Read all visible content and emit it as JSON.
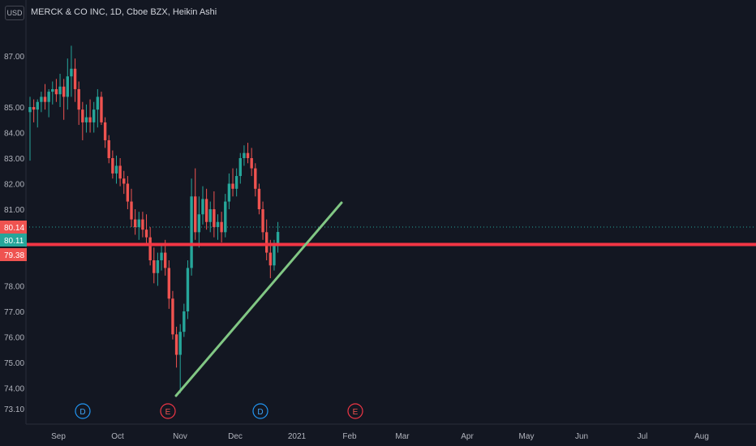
{
  "currency_label": "USD",
  "chart_title": "MERCK & CO INC, 1D, Cboe BZX, Heikin Ashi",
  "colors": {
    "background": "#131722",
    "up": "#26a69a",
    "down": "#ef5350",
    "trendline": "#81c784",
    "support_line": "#f23645",
    "text": "#b2b5be",
    "last_price_line": "#26a69a"
  },
  "chart_data": {
    "type": "candlestick",
    "y_ticks": [
      "87.00",
      "85.00",
      "84.00",
      "83.00",
      "82.00",
      "81.00",
      "78.00",
      "77.00",
      "76.00",
      "75.00",
      "74.00",
      "73.10"
    ],
    "x_ticks": [
      "Sep",
      "Oct",
      "Nov",
      "Dec",
      "2021",
      "Feb",
      "Mar",
      "Apr",
      "May",
      "Jun",
      "Jul",
      "Aug"
    ],
    "price_labels": [
      {
        "value": "80.14",
        "color": "#ef5350"
      },
      {
        "value": "80.11",
        "color": "#26a69a"
      },
      {
        "value": "79.38",
        "color": "#ef5350"
      }
    ],
    "horizontal_line": 79.38,
    "trendline": {
      "from": {
        "date": "Nov",
        "price": 73.6
      },
      "to": {
        "date": "Jan-late",
        "price": 81.1
      }
    },
    "event_markers": [
      {
        "label": "D",
        "type": "dividend",
        "month": "Sep"
      },
      {
        "label": "E",
        "type": "earnings",
        "month": "Nov"
      },
      {
        "label": "D",
        "type": "dividend",
        "month": "Dec"
      },
      {
        "label": "E",
        "type": "earnings",
        "month": "Feb"
      }
    ],
    "candles": [
      [
        84.8,
        85.4,
        82.9,
        85.0
      ],
      [
        85.0,
        85.3,
        84.4,
        84.9
      ],
      [
        84.9,
        85.3,
        84.2,
        85.2
      ],
      [
        85.2,
        85.6,
        84.8,
        85.4
      ],
      [
        85.4,
        85.9,
        84.9,
        85.2
      ],
      [
        85.2,
        85.7,
        84.6,
        85.6
      ],
      [
        85.6,
        86.0,
        85.1,
        85.7
      ],
      [
        85.7,
        86.1,
        85.2,
        85.5
      ],
      [
        85.5,
        86.3,
        85.0,
        85.8
      ],
      [
        85.8,
        86.1,
        84.5,
        85.4
      ],
      [
        85.4,
        86.9,
        84.9,
        86.2
      ],
      [
        86.2,
        87.4,
        85.4,
        86.5
      ],
      [
        86.5,
        86.9,
        85.2,
        85.7
      ],
      [
        85.7,
        86.0,
        84.3,
        84.9
      ],
      [
        84.9,
        85.2,
        83.7,
        84.4
      ],
      [
        84.4,
        85.1,
        84.0,
        84.6
      ],
      [
        84.6,
        85.3,
        84.0,
        84.4
      ],
      [
        84.4,
        85.2,
        84.0,
        84.9
      ],
      [
        84.9,
        85.7,
        84.2,
        85.4
      ],
      [
        85.4,
        85.6,
        84.3,
        84.4
      ],
      [
        84.4,
        84.6,
        83.4,
        83.7
      ],
      [
        83.7,
        83.9,
        82.8,
        83.0
      ],
      [
        83.0,
        83.3,
        82.2,
        82.4
      ],
      [
        82.4,
        83.1,
        82.0,
        82.7
      ],
      [
        82.7,
        83.0,
        81.9,
        82.2
      ],
      [
        82.2,
        82.5,
        81.6,
        82.0
      ],
      [
        82.0,
        82.3,
        81.0,
        81.3
      ],
      [
        81.3,
        81.8,
        80.3,
        80.6
      ],
      [
        80.6,
        81.0,
        80.0,
        80.3
      ],
      [
        80.3,
        80.9,
        79.8,
        80.6
      ],
      [
        80.6,
        80.9,
        79.9,
        80.2
      ],
      [
        80.2,
        80.8,
        79.6,
        79.9
      ],
      [
        79.9,
        80.3,
        78.8,
        79.0
      ],
      [
        79.0,
        79.5,
        78.1,
        78.5
      ],
      [
        78.5,
        79.3,
        78.0,
        79.0
      ],
      [
        79.0,
        79.6,
        78.6,
        79.3
      ],
      [
        79.3,
        79.8,
        78.4,
        78.7
      ],
      [
        78.7,
        79.0,
        77.1,
        77.5
      ],
      [
        77.5,
        77.8,
        75.9,
        76.1
      ],
      [
        76.1,
        76.4,
        74.8,
        75.3
      ],
      [
        75.3,
        76.5,
        73.8,
        76.2
      ],
      [
        76.2,
        77.3,
        76.0,
        77.0
      ],
      [
        77.0,
        79.0,
        76.7,
        78.7
      ],
      [
        78.7,
        82.2,
        78.4,
        81.5
      ],
      [
        81.5,
        82.6,
        79.8,
        80.1
      ],
      [
        80.1,
        81.5,
        79.5,
        80.8
      ],
      [
        80.8,
        81.9,
        80.4,
        81.4
      ],
      [
        81.4,
        81.8,
        80.2,
        80.5
      ],
      [
        80.5,
        81.3,
        80.1,
        81.0
      ],
      [
        81.0,
        81.7,
        79.9,
        80.3
      ],
      [
        80.3,
        80.8,
        79.8,
        80.5
      ],
      [
        80.5,
        80.9,
        79.7,
        80.1
      ],
      [
        80.1,
        81.6,
        79.9,
        81.3
      ],
      [
        81.3,
        82.4,
        81.0,
        82.0
      ],
      [
        82.0,
        82.6,
        81.5,
        81.8
      ],
      [
        81.8,
        82.6,
        81.5,
        82.3
      ],
      [
        82.3,
        83.2,
        82.0,
        83.0
      ],
      [
        83.0,
        83.5,
        82.7,
        83.2
      ],
      [
        83.2,
        83.6,
        82.8,
        83.0
      ],
      [
        83.0,
        83.4,
        82.3,
        82.6
      ],
      [
        82.6,
        82.8,
        81.5,
        81.8
      ],
      [
        81.8,
        82.0,
        80.8,
        81.0
      ],
      [
        81.0,
        81.3,
        79.8,
        80.1
      ],
      [
        80.1,
        80.6,
        79.0,
        79.3
      ],
      [
        79.3,
        79.8,
        78.3,
        78.8
      ],
      [
        78.8,
        79.8,
        78.6,
        79.6
      ],
      [
        79.6,
        80.5,
        79.3,
        80.11
      ]
    ]
  }
}
